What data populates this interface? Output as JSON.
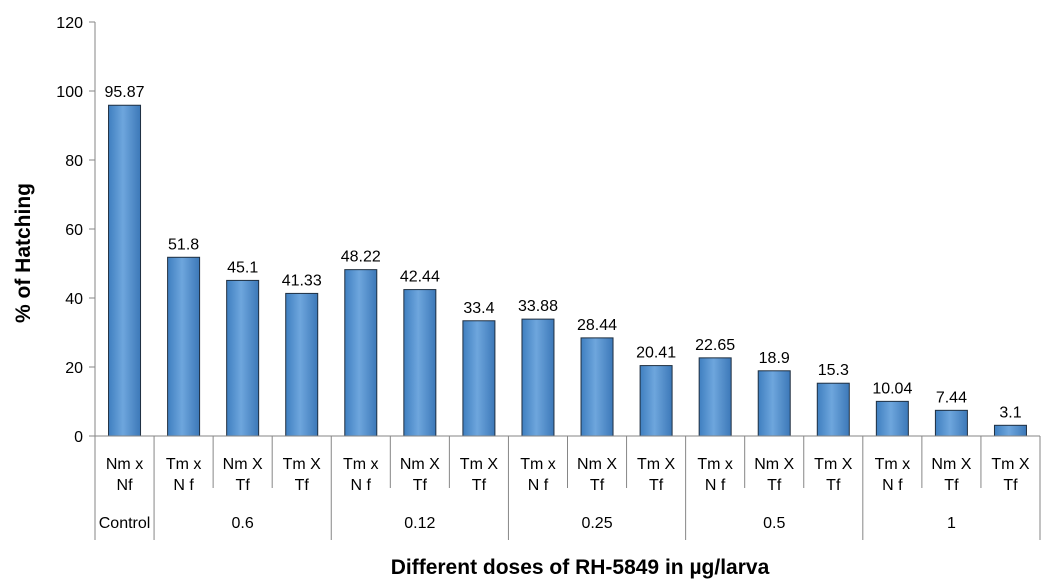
{
  "chart_data": {
    "type": "bar",
    "xlabel": "Different doses of RH-5849 in µg/larva",
    "ylabel": "% of Hatching",
    "ylim": [
      0,
      120
    ],
    "yticks": [
      "0",
      "20",
      "40",
      "60",
      "80",
      "100",
      "120"
    ],
    "grid": false,
    "legend": "none",
    "bar_color": "#5b9bd5",
    "categories": [
      {
        "line1": "Nm x",
        "line2": "Nf",
        "group": "Control"
      },
      {
        "line1": "Tm x",
        "line2": "N f",
        "group": "0.6"
      },
      {
        "line1": "Nm X",
        "line2": "Tf",
        "group": "0.6"
      },
      {
        "line1": "Tm X",
        "line2": "Tf",
        "group": "0.6"
      },
      {
        "line1": "Tm x",
        "line2": "N f",
        "group": "0.12"
      },
      {
        "line1": "Nm X",
        "line2": "Tf",
        "group": "0.12"
      },
      {
        "line1": "Tm X",
        "line2": "Tf",
        "group": "0.12"
      },
      {
        "line1": "Tm x",
        "line2": "N f",
        "group": "0.25"
      },
      {
        "line1": "Nm X",
        "line2": "Tf",
        "group": "0.25"
      },
      {
        "line1": "Tm X",
        "line2": "Tf",
        "group": "0.25"
      },
      {
        "line1": "Tm x",
        "line2": "N f",
        "group": "0.5"
      },
      {
        "line1": "Nm X",
        "line2": "Tf",
        "group": "0.5"
      },
      {
        "line1": "Tm X",
        "line2": "Tf",
        "group": "0.5"
      },
      {
        "line1": "Tm x",
        "line2": "N f",
        "group": "1"
      },
      {
        "line1": "Nm X",
        "line2": "Tf",
        "group": "1"
      },
      {
        "line1": "Tm X",
        "line2": "Tf",
        "group": "1"
      }
    ],
    "values": [
      95.87,
      51.8,
      45.1,
      41.33,
      48.22,
      42.44,
      33.4,
      33.88,
      28.44,
      20.41,
      22.65,
      18.9,
      15.3,
      10.04,
      7.44,
      3.1
    ],
    "data_labels": [
      "95.87",
      "51.8",
      "45.1",
      "41.33",
      "48.22",
      "42.44",
      "33.4",
      "33.88",
      "28.44",
      "20.41",
      "22.65",
      "18.9",
      "15.3",
      "10.04",
      "7.44",
      "3.1"
    ],
    "groups": [
      {
        "label": "Control",
        "count": 1
      },
      {
        "label": "0.6",
        "count": 3
      },
      {
        "label": "0.12",
        "count": 3
      },
      {
        "label": "0.25",
        "count": 3
      },
      {
        "label": "0.5",
        "count": 3
      },
      {
        "label": "1",
        "count": 3
      }
    ]
  }
}
